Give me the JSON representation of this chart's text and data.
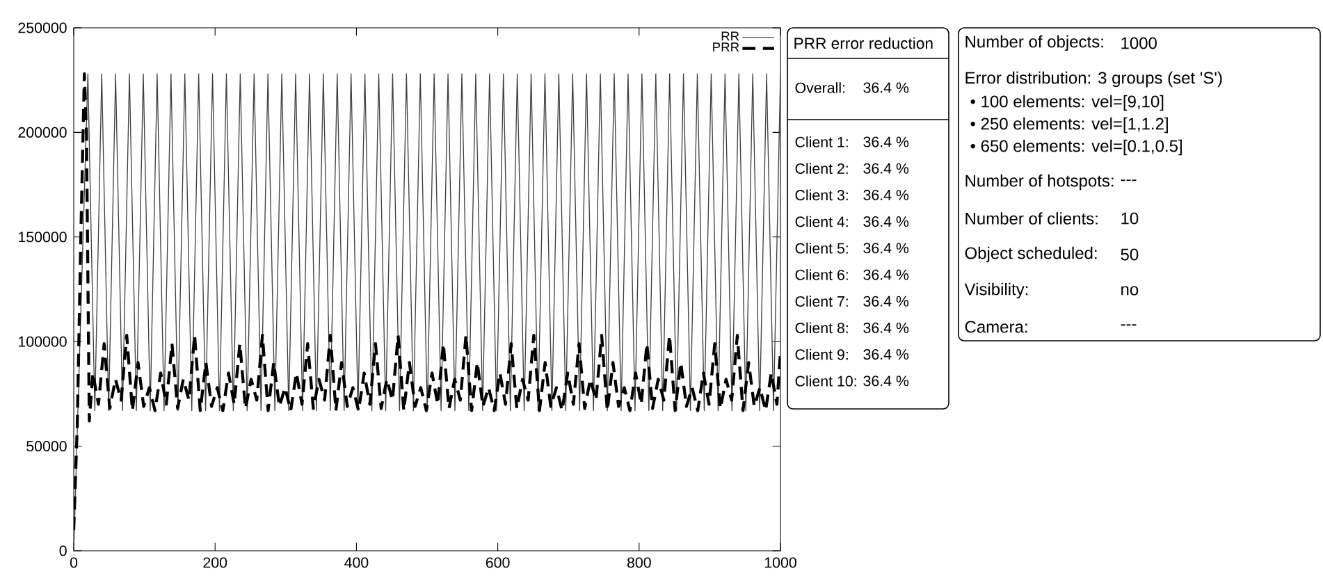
{
  "chart_data": [
    {
      "type": "line",
      "xlim": [
        0,
        1000
      ],
      "ylim": [
        0,
        250000
      ],
      "xticks": [
        0,
        200,
        400,
        600,
        800,
        1000
      ],
      "yticks": [
        0,
        50000,
        100000,
        150000,
        200000,
        250000
      ],
      "legend": "top right",
      "grid": false,
      "series": [
        {
          "name": "RR",
          "color": "#404040",
          "line_style": "solid",
          "x": [
            0,
            20,
            29.8,
            39.6,
            49.4,
            59.2,
            69,
            78.8,
            88.6,
            98.4,
            108.2,
            118,
            127.8,
            137.6,
            147.4,
            157.2,
            167,
            176.8,
            186.6,
            196.4,
            206.2,
            216,
            225.8,
            235.6,
            245.4,
            255.2,
            265,
            274.8,
            284.6,
            294.4,
            304.2,
            314,
            323.8,
            333.6,
            343.4,
            353.2,
            363,
            372.8,
            382.6,
            392.4,
            402.2,
            412,
            421.8,
            431.6,
            441.4,
            451.2,
            461,
            470.8,
            480.6,
            490.4,
            500.2,
            510,
            519.8,
            529.6,
            539.4,
            549.2,
            559,
            568.8,
            578.6,
            588.4,
            598.2,
            608,
            617.8,
            627.6,
            637.4,
            647.2,
            657,
            666.8,
            676.6,
            686.4,
            696.2,
            706,
            715.8,
            725.6,
            735.4,
            745.2,
            755,
            764.8,
            774.6,
            784.4,
            794.2,
            804,
            813.8,
            823.6,
            833.4,
            843.2,
            853,
            862.8,
            872.6,
            882.4,
            892.2,
            902,
            911.8,
            921.6,
            931.4,
            941.2,
            951,
            960.8,
            970.6,
            980.4,
            990.2,
            1000
          ],
          "values": [
            0,
            228000,
            67000,
            228000,
            67000,
            228000,
            67000,
            228000,
            67000,
            228000,
            67000,
            228000,
            67000,
            228000,
            67000,
            228000,
            67000,
            228000,
            67000,
            228000,
            67000,
            228000,
            67000,
            228000,
            67000,
            228000,
            67000,
            228000,
            67000,
            228000,
            67000,
            228000,
            67000,
            228000,
            67000,
            228000,
            67000,
            228000,
            67000,
            228000,
            67000,
            228000,
            67000,
            228000,
            67000,
            228000,
            67000,
            228000,
            67000,
            228000,
            67000,
            228000,
            67000,
            228000,
            67000,
            228000,
            67000,
            228000,
            67000,
            228000,
            67000,
            228000,
            67000,
            228000,
            67000,
            228000,
            67000,
            228000,
            67000,
            228000,
            67000,
            228000,
            67000,
            228000,
            67000,
            228000,
            67000,
            228000,
            67000,
            228000,
            67000,
            228000,
            67000,
            228000,
            67000,
            228000,
            67000,
            228000,
            67000,
            228000,
            67000,
            228000,
            67000,
            228000,
            67000,
            228000,
            67000,
            228000,
            67000,
            228000,
            67000,
            228000
          ]
        },
        {
          "name": "PRR",
          "color": "#000000",
          "line_style": "dashed",
          "x": [
            0,
            5,
            10,
            15,
            18,
            22,
            27,
            35,
            43,
            51,
            59,
            67,
            75,
            83,
            91,
            99,
            107,
            115,
            123,
            131,
            139,
            147,
            155,
            163,
            171,
            179,
            187,
            195,
            203,
            211,
            219,
            227,
            235,
            243,
            251,
            259,
            267,
            275,
            283,
            291,
            299,
            307,
            315,
            323,
            331,
            339,
            347,
            355,
            363,
            371,
            379,
            387,
            395,
            403,
            411,
            419,
            427,
            435,
            443,
            451,
            459,
            467,
            475,
            483,
            491,
            499,
            507,
            515,
            523,
            531,
            539,
            547,
            555,
            563,
            571,
            579,
            587,
            595,
            603,
            611,
            619,
            627,
            635,
            643,
            651,
            659,
            667,
            675,
            683,
            691,
            699,
            707,
            715,
            723,
            731,
            739,
            747,
            755,
            763,
            771,
            779,
            787,
            795,
            803,
            811,
            819,
            827,
            835,
            843,
            851,
            859,
            867,
            875,
            883,
            891,
            899,
            907,
            915,
            923,
            931,
            939,
            947,
            955,
            963,
            971,
            979,
            987,
            995,
            1000
          ],
          "values": [
            10000,
            60000,
            150000,
            228000,
            200000,
            62000,
            85000,
            70000,
            99000,
            68000,
            82000,
            72000,
            103000,
            67000,
            90000,
            69000,
            78000,
            67000,
            85000,
            70000,
            99000,
            68000,
            82000,
            72000,
            103000,
            67000,
            90000,
            69000,
            78000,
            67000,
            85000,
            70000,
            99000,
            68000,
            82000,
            72000,
            103000,
            67000,
            90000,
            69000,
            78000,
            67000,
            85000,
            70000,
            99000,
            68000,
            82000,
            72000,
            103000,
            67000,
            90000,
            69000,
            78000,
            67000,
            85000,
            70000,
            99000,
            68000,
            82000,
            72000,
            103000,
            67000,
            90000,
            69000,
            78000,
            67000,
            85000,
            70000,
            99000,
            68000,
            82000,
            72000,
            103000,
            67000,
            90000,
            69000,
            78000,
            67000,
            85000,
            70000,
            99000,
            68000,
            82000,
            72000,
            103000,
            67000,
            90000,
            69000,
            78000,
            67000,
            85000,
            70000,
            99000,
            68000,
            82000,
            72000,
            103000,
            67000,
            90000,
            69000,
            78000,
            67000,
            85000,
            70000,
            99000,
            68000,
            82000,
            72000,
            103000,
            67000,
            90000,
            69000,
            78000,
            67000,
            85000,
            70000,
            99000,
            68000,
            82000,
            72000,
            103000,
            67000,
            90000,
            69000,
            78000,
            67000,
            85000,
            70000,
            95000
          ]
        }
      ]
    },
    {
      "type": "other",
      "title": "PRR error reduction",
      "annotations": [
        "Overall:",
        "36.4 %",
        "Client 1:",
        "36.4 %",
        "Client 2:",
        "36.4 %",
        "Client 3:",
        "36.4 %",
        "Client 4:",
        "36.4 %",
        "Client 5:",
        "36.4 %",
        "Client 6:",
        "36.4 %",
        "Client 7:",
        "36.4 %",
        "Client 8:",
        "36.4 %",
        "Client 9:",
        "36.4 %",
        "Client 10:",
        "36.4 %"
      ]
    },
    {
      "type": "other",
      "annotations": [
        "Number of objects:",
        "1000",
        "Error distribution: 3 groups (set 'S')",
        "• 100 elements: vel=[9,10]",
        "• 250 elements: vel=[1,1.2]",
        "• 650 elements: vel=[0.1,0.5]",
        "Number of hotspots:",
        "---",
        "Number of clients:",
        "10",
        "Object scheduled:",
        "50",
        "Visibility:",
        "no",
        "Camera:",
        "---"
      ]
    }
  ]
}
